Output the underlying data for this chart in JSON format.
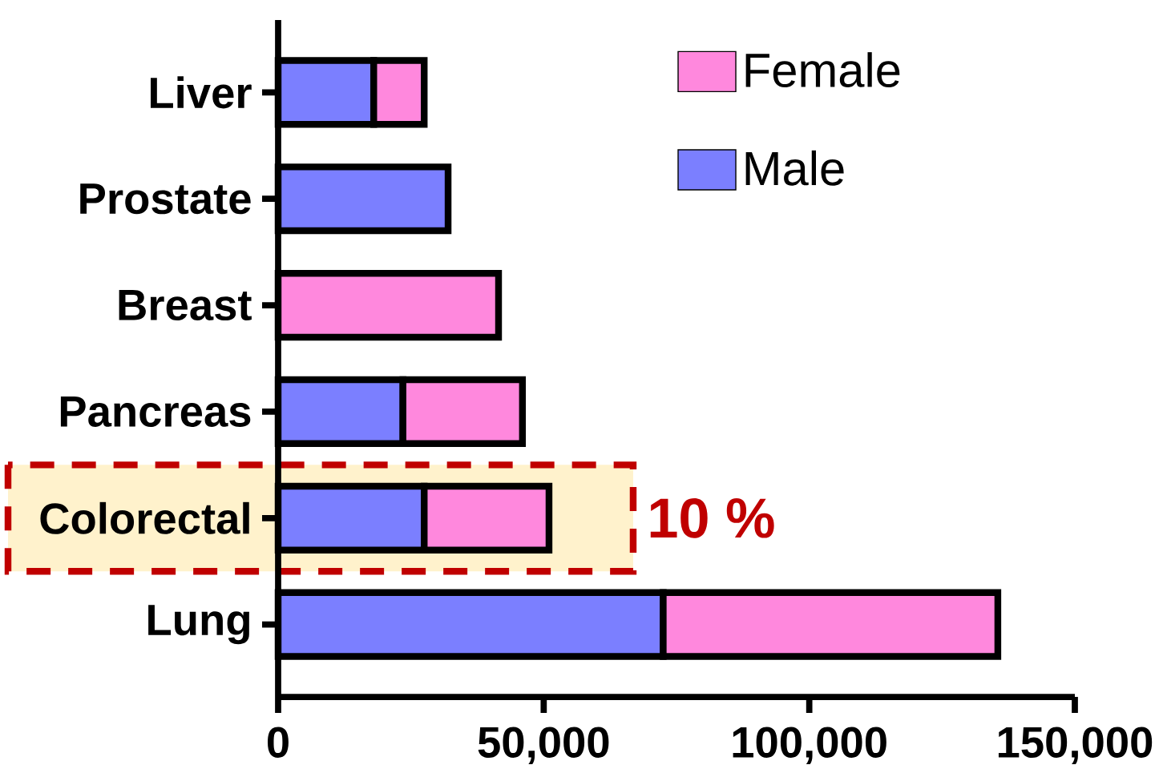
{
  "chart_data": {
    "type": "bar",
    "orientation": "horizontal",
    "stacked": true,
    "categories": [
      "Liver",
      "Prostate",
      "Breast",
      "Pancreas",
      "Colorectal",
      "Lung"
    ],
    "series": [
      {
        "name": "Male",
        "color": "#7b7fff",
        "values": [
          18000,
          32000,
          null,
          23500,
          27500,
          72500
        ]
      },
      {
        "name": "Female",
        "color": "#ff88dd",
        "values": [
          9500,
          null,
          41500,
          22500,
          23500,
          63000
        ]
      }
    ],
    "xlim": [
      0,
      150000
    ],
    "xticks": [
      0,
      {
        "value": 50000,
        "label": "50,000"
      },
      {
        "value": 100000,
        "label": "100,000"
      },
      {
        "value": 150000,
        "label": "150,000"
      }
    ],
    "bands": [
      {
        "axis": "y",
        "from": "Colorectal",
        "to": "Colorectal",
        "label": "10 %",
        "color": "#fff2cc"
      }
    ],
    "legend": "top right",
    "grid": false
  }
}
